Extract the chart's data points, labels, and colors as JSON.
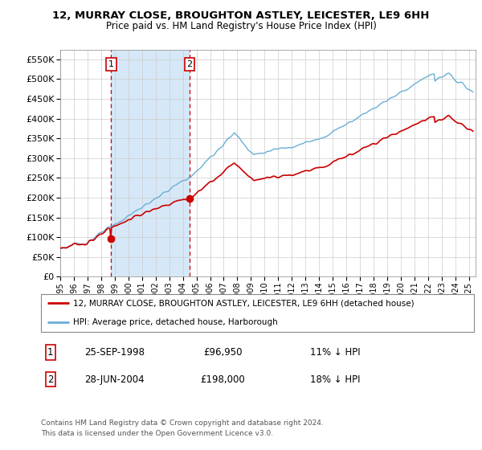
{
  "title": "12, MURRAY CLOSE, BROUGHTON ASTLEY, LEICESTER, LE9 6HH",
  "subtitle": "Price paid vs. HM Land Registry's House Price Index (HPI)",
  "legend_line1": "12, MURRAY CLOSE, BROUGHTON ASTLEY, LEICESTER, LE9 6HH (detached house)",
  "legend_line2": "HPI: Average price, detached house, Harborough",
  "transaction1_date": "25-SEP-1998",
  "transaction1_price": "£96,950",
  "transaction1_hpi": "11% ↓ HPI",
  "transaction1_year": 1998.73,
  "transaction1_value": 96950,
  "transaction2_date": "28-JUN-2004",
  "transaction2_price": "£198,000",
  "transaction2_hpi": "18% ↓ HPI",
  "transaction2_year": 2004.49,
  "transaction2_value": 198000,
  "footnote1": "Contains HM Land Registry data © Crown copyright and database right 2024.",
  "footnote2": "This data is licensed under the Open Government Licence v3.0.",
  "hpi_color": "#6baed6",
  "price_color": "#cc0000",
  "vline_color": "#cc0000",
  "shade_color": "#d6e8f7",
  "yticks": [
    0,
    50000,
    100000,
    150000,
    200000,
    250000,
    300000,
    350000,
    400000,
    450000,
    500000,
    550000
  ],
  "ylim": [
    0,
    575000
  ],
  "xlim_start": 1995.0,
  "xlim_end": 2025.5
}
